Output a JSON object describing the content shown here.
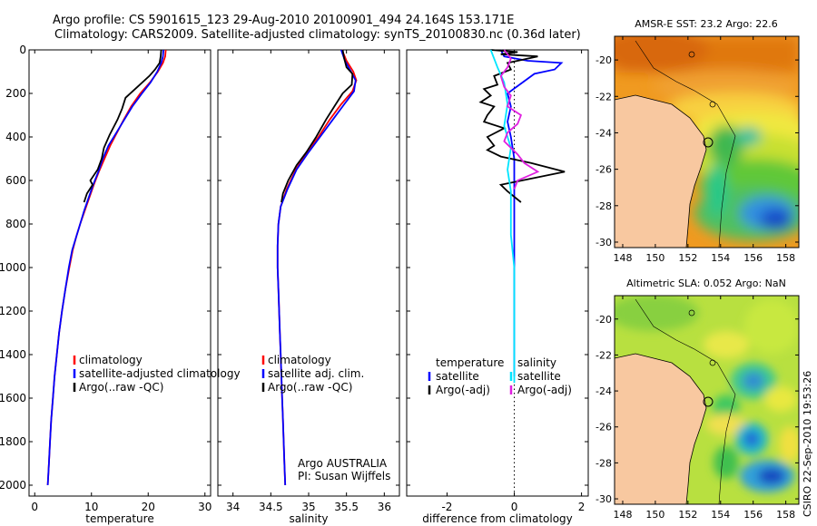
{
  "header": {
    "line1": "Argo profile: CS 5901615_123 29-Aug-2010 20100901_494 24.164S 153.171E",
    "line2": "Climatology: CARS2009. Satellite-adjusted climatology: synTS_20100830.nc (0.36d later)"
  },
  "side_stamp": "CSIRO 22-Sep-2010 19:53:26",
  "colors": {
    "climatology": "#ff0000",
    "satellite": "#0000ff",
    "argo": "#000000",
    "salinity_satellite": "#00e5ff",
    "salinity_argo": "#e020e0",
    "land": "#f8c8a0",
    "coast": "#000000"
  },
  "chart_data": [
    {
      "type": "line",
      "id": "temperature",
      "xlabel": "temperature",
      "xlim": [
        -1,
        31
      ],
      "ylim": [
        0,
        2050
      ],
      "y_reversed": true,
      "xticks": [
        0,
        10,
        20,
        30
      ],
      "yticks": [
        0,
        200,
        400,
        600,
        800,
        1000,
        1200,
        1400,
        1600,
        1800,
        2000
      ],
      "legend": [
        "climatology",
        "satellite-adjusted climatology",
        "Argo(..raw -QC)"
      ],
      "series": [
        {
          "name": "climatology",
          "color": "#ff0000",
          "points": [
            [
              23.1,
              0
            ],
            [
              23.0,
              30
            ],
            [
              22.6,
              60
            ],
            [
              21.7,
              100
            ],
            [
              20.3,
              150
            ],
            [
              18.6,
              200
            ],
            [
              17.0,
              260
            ],
            [
              15.7,
              320
            ],
            [
              14.5,
              380
            ],
            [
              13.3,
              440
            ],
            [
              12.3,
              500
            ],
            [
              11.3,
              560
            ],
            [
              10.4,
              620
            ],
            [
              9.6,
              680
            ],
            [
              8.8,
              740
            ],
            [
              8.0,
              800
            ],
            [
              7.3,
              860
            ],
            [
              6.7,
              920
            ],
            [
              6.1,
              1000
            ],
            [
              5.4,
              1100
            ],
            [
              4.8,
              1200
            ],
            [
              4.3,
              1300
            ],
            [
              3.9,
              1400
            ],
            [
              3.5,
              1500
            ],
            [
              3.2,
              1600
            ],
            [
              2.9,
              1700
            ],
            [
              2.7,
              1800
            ],
            [
              2.5,
              1900
            ],
            [
              2.3,
              2000
            ]
          ]
        },
        {
          "name": "satellite-adjusted climatology",
          "color": "#0000ff",
          "points": [
            [
              22.7,
              0
            ],
            [
              22.6,
              30
            ],
            [
              22.3,
              60
            ],
            [
              21.6,
              100
            ],
            [
              20.4,
              150
            ],
            [
              18.9,
              200
            ],
            [
              17.2,
              260
            ],
            [
              15.8,
              320
            ],
            [
              14.4,
              380
            ],
            [
              13.0,
              440
            ],
            [
              12.0,
              500
            ],
            [
              11.2,
              560
            ],
            [
              10.3,
              620
            ],
            [
              9.5,
              680
            ],
            [
              8.7,
              740
            ],
            [
              8.0,
              800
            ],
            [
              7.3,
              860
            ],
            [
              6.6,
              920
            ],
            [
              6.0,
              1000
            ],
            [
              5.4,
              1100
            ],
            [
              4.8,
              1200
            ],
            [
              4.3,
              1300
            ],
            [
              3.9,
              1400
            ],
            [
              3.5,
              1500
            ],
            [
              3.2,
              1600
            ],
            [
              2.9,
              1700
            ],
            [
              2.7,
              1800
            ],
            [
              2.5,
              1900
            ],
            [
              2.3,
              2000
            ]
          ]
        },
        {
          "name": "Argo(..raw -QC)",
          "color": "#000000",
          "points": [
            [
              22.3,
              0
            ],
            [
              22.2,
              30
            ],
            [
              22.0,
              60
            ],
            [
              21.2,
              90
            ],
            [
              20.2,
              120
            ],
            [
              18.1,
              170
            ],
            [
              16.0,
              220
            ],
            [
              15.4,
              270
            ],
            [
              14.6,
              320
            ],
            [
              13.2,
              390
            ],
            [
              12.2,
              450
            ],
            [
              11.8,
              500
            ],
            [
              11.1,
              550
            ],
            [
              9.8,
              600
            ],
            [
              10.2,
              620
            ],
            [
              9.2,
              660
            ],
            [
              8.7,
              700
            ]
          ]
        }
      ]
    },
    {
      "type": "line",
      "id": "salinity",
      "xlabel": "salinity",
      "xlim": [
        33.8,
        36.2
      ],
      "ylim": [
        0,
        2050
      ],
      "y_reversed": true,
      "xticks": [
        34,
        34.5,
        35,
        35.5,
        36
      ],
      "legend": [
        "climatology",
        "satellite adj. clim.",
        "Argo(..raw -QC)"
      ],
      "annotation": [
        "Argo AUSTRALIA",
        "PI: Susan Wijffels"
      ],
      "series": [
        {
          "name": "climatology",
          "color": "#ff0000",
          "points": [
            [
              35.44,
              0
            ],
            [
              35.5,
              50
            ],
            [
              35.59,
              100
            ],
            [
              35.63,
              140
            ],
            [
              35.58,
              190
            ],
            [
              35.43,
              250
            ],
            [
              35.28,
              320
            ],
            [
              35.13,
              400
            ],
            [
              34.98,
              470
            ],
            [
              34.83,
              550
            ],
            [
              34.71,
              640
            ],
            [
              34.63,
              720
            ],
            [
              34.6,
              800
            ],
            [
              34.59,
              900
            ],
            [
              34.59,
              1000
            ],
            [
              34.6,
              1100
            ],
            [
              34.61,
              1200
            ],
            [
              34.62,
              1300
            ],
            [
              34.63,
              1400
            ],
            [
              34.64,
              1500
            ],
            [
              34.65,
              1600
            ],
            [
              34.66,
              1700
            ],
            [
              34.67,
              1800
            ],
            [
              34.68,
              1900
            ],
            [
              34.69,
              2000
            ]
          ]
        },
        {
          "name": "satellite adj. clim.",
          "color": "#0000ff",
          "points": [
            [
              35.43,
              0
            ],
            [
              35.48,
              50
            ],
            [
              35.56,
              100
            ],
            [
              35.62,
              140
            ],
            [
              35.6,
              190
            ],
            [
              35.47,
              250
            ],
            [
              35.32,
              320
            ],
            [
              35.15,
              400
            ],
            [
              35.0,
              470
            ],
            [
              34.84,
              550
            ],
            [
              34.72,
              640
            ],
            [
              34.63,
              720
            ],
            [
              34.6,
              800
            ],
            [
              34.59,
              900
            ],
            [
              34.59,
              1000
            ],
            [
              34.6,
              1100
            ],
            [
              34.61,
              1200
            ],
            [
              34.62,
              1300
            ],
            [
              34.63,
              1400
            ],
            [
              34.64,
              1500
            ],
            [
              34.65,
              1600
            ],
            [
              34.66,
              1700
            ],
            [
              34.67,
              1800
            ],
            [
              34.68,
              1900
            ],
            [
              34.69,
              2000
            ]
          ]
        },
        {
          "name": "Argo(..raw -QC)",
          "color": "#000000",
          "points": [
            [
              35.45,
              0
            ],
            [
              35.47,
              40
            ],
            [
              35.5,
              80
            ],
            [
              35.58,
              110
            ],
            [
              35.57,
              160
            ],
            [
              35.45,
              200
            ],
            [
              35.34,
              260
            ],
            [
              35.23,
              320
            ],
            [
              35.1,
              400
            ],
            [
              34.97,
              470
            ],
            [
              34.84,
              530
            ],
            [
              34.73,
              600
            ],
            [
              34.66,
              660
            ],
            [
              34.64,
              700
            ]
          ]
        }
      ]
    },
    {
      "type": "line",
      "id": "difference",
      "xlabel": "difference from climatology",
      "xlim": [
        -3.2,
        2.2
      ],
      "ylim": [
        0,
        2050
      ],
      "y_reversed": true,
      "xticks": [
        -2,
        0,
        2
      ],
      "zero_line": "dotted",
      "legend_left": [
        "temperature",
        "satellite",
        "Argo(-adj)"
      ],
      "legend_right": [
        "salinity",
        "satellite",
        "Argo(-adj)"
      ],
      "series": [
        {
          "name": "temperature satellite",
          "color": "#0000ff",
          "points": [
            [
              -0.4,
              0
            ],
            [
              -0.3,
              30
            ],
            [
              0.4,
              50
            ],
            [
              1.4,
              60
            ],
            [
              1.2,
              90
            ],
            [
              0.6,
              110
            ],
            [
              -0.2,
              200
            ],
            [
              -0.1,
              260
            ],
            [
              -0.2,
              330
            ],
            [
              -0.1,
              400
            ],
            [
              0.0,
              500
            ],
            [
              0.0,
              600
            ],
            [
              0.0,
              700
            ],
            [
              0.0,
              800
            ],
            [
              0.0,
              1000
            ],
            [
              0.0,
              1200
            ],
            [
              0.0,
              1400
            ],
            [
              0.0,
              1500
            ]
          ]
        },
        {
          "name": "temperature Argo(-adj)",
          "color": "#000000",
          "points": [
            [
              -0.7,
              0
            ],
            [
              0.1,
              10
            ],
            [
              -0.4,
              20
            ],
            [
              0.7,
              30
            ],
            [
              -0.2,
              60
            ],
            [
              -0.1,
              90
            ],
            [
              -0.6,
              120
            ],
            [
              -0.5,
              160
            ],
            [
              -0.9,
              180
            ],
            [
              -0.7,
              210
            ],
            [
              -1.0,
              240
            ],
            [
              -0.6,
              260
            ],
            [
              -0.8,
              300
            ],
            [
              -0.9,
              330
            ],
            [
              -0.3,
              360
            ],
            [
              -0.8,
              400
            ],
            [
              -0.6,
              440
            ],
            [
              -0.8,
              460
            ],
            [
              -0.4,
              490
            ],
            [
              0.5,
              520
            ],
            [
              1.5,
              560
            ],
            [
              -0.4,
              620
            ],
            [
              -0.2,
              650
            ],
            [
              0.2,
              700
            ]
          ]
        },
        {
          "name": "salinity satellite",
          "color": "#00e5ff",
          "points": [
            [
              -0.7,
              0
            ],
            [
              -0.6,
              40
            ],
            [
              -0.5,
              80
            ],
            [
              -0.3,
              150
            ],
            [
              -0.2,
              250
            ],
            [
              -0.3,
              350
            ],
            [
              -0.1,
              450
            ],
            [
              -0.2,
              550
            ],
            [
              -0.1,
              650
            ],
            [
              -0.1,
              750
            ],
            [
              -0.1,
              850
            ],
            [
              0.0,
              1000
            ],
            [
              0.0,
              1200
            ],
            [
              0.0,
              1400
            ],
            [
              0.0,
              1530
            ]
          ]
        },
        {
          "name": "salinity Argo(-adj)",
          "color": "#e020e0",
          "points": [
            [
              -0.3,
              0
            ],
            [
              -0.1,
              40
            ],
            [
              -0.2,
              80
            ],
            [
              -0.4,
              120
            ],
            [
              -0.3,
              170
            ],
            [
              -0.1,
              210
            ],
            [
              -0.2,
              260
            ],
            [
              0.2,
              300
            ],
            [
              0.1,
              340
            ],
            [
              -0.2,
              380
            ],
            [
              -0.3,
              420
            ],
            [
              0.1,
              480
            ],
            [
              0.3,
              520
            ],
            [
              0.7,
              560
            ],
            [
              0.1,
              600
            ],
            [
              0.0,
              640
            ]
          ]
        }
      ]
    },
    {
      "type": "heatmap",
      "id": "sst_map",
      "title": "AMSR-E SST: 23.2 Argo: 22.6",
      "xlim": [
        147.5,
        158.8
      ],
      "ylim": [
        -30.3,
        -18.7
      ],
      "xticks": [
        148,
        150,
        152,
        154,
        156,
        158
      ],
      "yticks": [
        -20,
        -22,
        -24,
        -26,
        -28,
        -30
      ],
      "argo_position": {
        "lon": 153.171,
        "lat": -24.164
      }
    },
    {
      "type": "heatmap",
      "id": "sla_map",
      "title": "Altimetric SLA: 0.052 Argo: NaN",
      "xlim": [
        147.5,
        158.8
      ],
      "ylim": [
        -30.3,
        -18.7
      ],
      "xticks": [
        148,
        150,
        152,
        154,
        156,
        158
      ],
      "yticks": [
        -20,
        -22,
        -24,
        -26,
        -28,
        -30
      ],
      "argo_position": {
        "lon": 153.171,
        "lat": -24.164
      }
    }
  ]
}
